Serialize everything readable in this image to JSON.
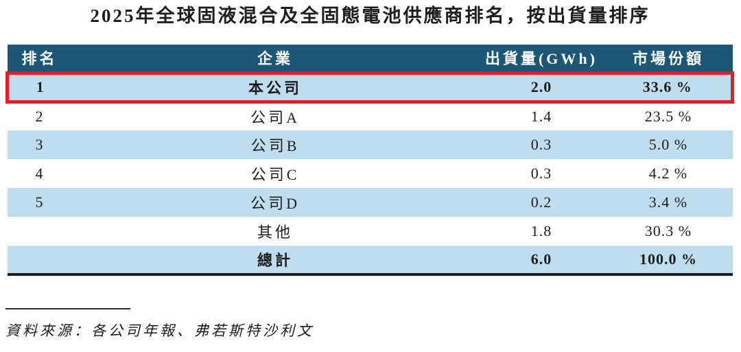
{
  "title": "2025年全球固液混合及全固態電池供應商排名，按出貨量排序",
  "table": {
    "columns": {
      "rank": "排名",
      "company": "企業",
      "shipment": "出貨量(GWh)",
      "share": "市場份額"
    },
    "rows": [
      {
        "rank": "1",
        "company": "本公司",
        "shipment": "2.0",
        "share": "33.6 %",
        "shaded": true,
        "bold": true,
        "highlighted": true
      },
      {
        "rank": "2",
        "company": "公司A",
        "shipment": "1.4",
        "share": "23.5 %",
        "shaded": false,
        "bold": false,
        "highlighted": false
      },
      {
        "rank": "3",
        "company": "公司B",
        "shipment": "0.3",
        "share": "5.0 %",
        "shaded": true,
        "bold": false,
        "highlighted": false
      },
      {
        "rank": "4",
        "company": "公司C",
        "shipment": "0.3",
        "share": "4.2 %",
        "shaded": false,
        "bold": false,
        "highlighted": false
      },
      {
        "rank": "5",
        "company": "公司D",
        "shipment": "0.2",
        "share": "3.4 %",
        "shaded": true,
        "bold": false,
        "highlighted": false
      },
      {
        "rank": "",
        "company": "其他",
        "shipment": "1.8",
        "share": "30.3 %",
        "shaded": false,
        "bold": false,
        "highlighted": false
      },
      {
        "rank": "",
        "company": "總計",
        "shipment": "6.0",
        "share": "100.0 %",
        "shaded": true,
        "bold": true,
        "highlighted": false
      }
    ]
  },
  "source_note": "資料來源：各公司年報、弗若斯特沙利文",
  "colors": {
    "header_bg": "#1c5776",
    "row_shaded_bg": "#bedeee",
    "highlight_border": "#e12026",
    "text": "#1f1c1d"
  }
}
